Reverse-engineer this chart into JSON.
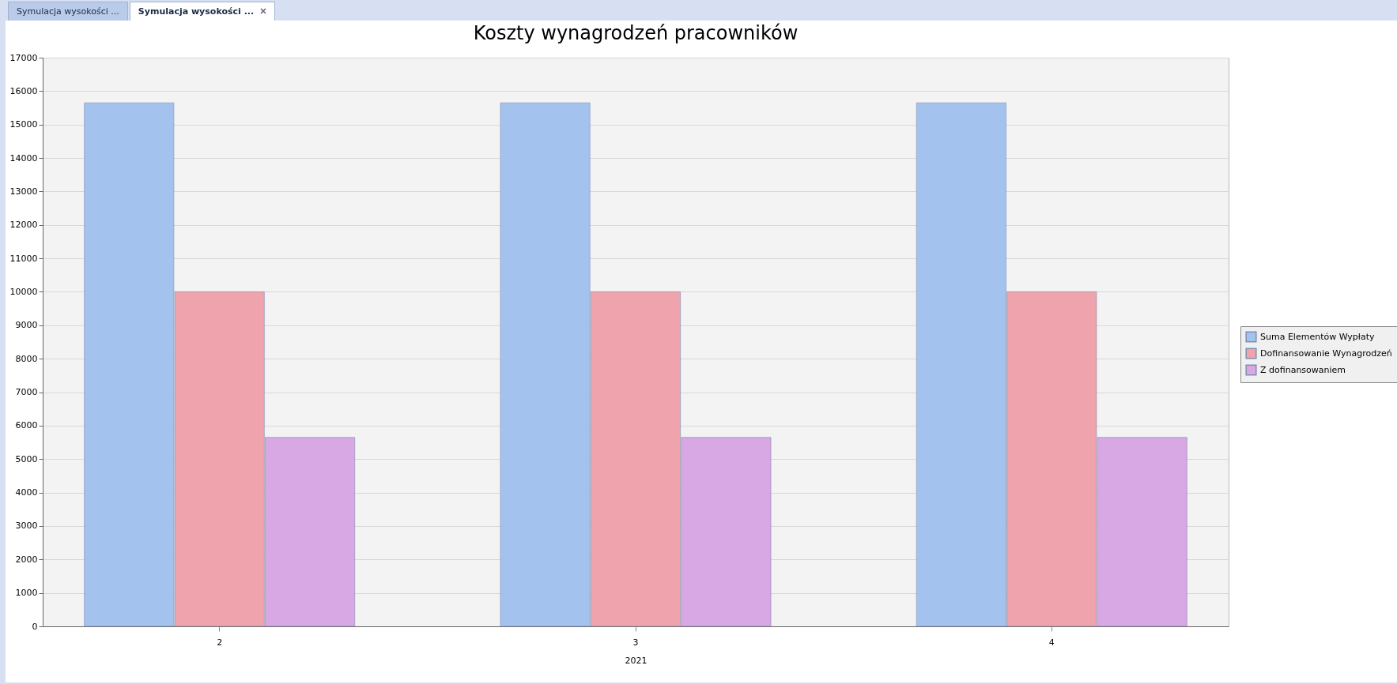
{
  "chart_data": {
    "type": "bar",
    "title": "Koszty wynagrodzeń pracowników",
    "xlabel": "2021",
    "categories": [
      "2",
      "3",
      "4"
    ],
    "series": [
      {
        "name": "Suma Elementów Wypłaty",
        "color": "#a4c2ee",
        "values": [
          15650,
          15650,
          15650
        ]
      },
      {
        "name": "Dofinansowanie Wynagrodzeń",
        "color": "#eea3ad",
        "values": [
          10000,
          10000,
          10000
        ]
      },
      {
        "name": "Z dofinansowaniem",
        "color": "#d7a8e4",
        "values": [
          5650,
          5650,
          5650
        ]
      }
    ],
    "ylim": [
      0,
      17000
    ],
    "yticks": [
      0,
      1000,
      2000,
      3000,
      4000,
      5000,
      6000,
      7000,
      8000,
      9000,
      10000,
      11000,
      12000,
      13000,
      14000,
      15000,
      16000,
      17000
    ],
    "grid": "y",
    "legend": "right",
    "annotations": [
      "Symulacja wysokości ...",
      "Symulacja wysokości ..."
    ]
  }
}
